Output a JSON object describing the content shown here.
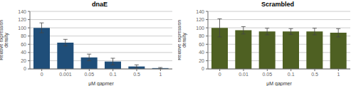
{
  "chart_data": [
    {
      "type": "bar",
      "title": "dnaE",
      "categories": [
        "0",
        "0.001",
        "0.05",
        "0.1",
        "0.5",
        "1"
      ],
      "values": [
        100,
        64,
        28,
        18,
        6,
        2
      ],
      "errors": [
        12,
        8,
        8,
        8,
        4,
        1.5
      ],
      "color": "#1F4E79",
      "xlabel": "μM gapmer",
      "ylabel": "Relative expression\ndensity",
      "ylim": [
        0,
        140
      ],
      "yticks": [
        0,
        20,
        40,
        60,
        80,
        100,
        120,
        140
      ],
      "grid": true
    },
    {
      "type": "bar",
      "title": "Scrambled",
      "categories": [
        "0",
        "0.01",
        "0.05",
        "0.1",
        "0.5",
        "1"
      ],
      "values": [
        100,
        94,
        91,
        91,
        91,
        88
      ],
      "errors": [
        22,
        9,
        8,
        7,
        8,
        10
      ],
      "color": "#4E6022",
      "xlabel": "μM gapmer",
      "ylabel": "Relative expression\ndensity",
      "ylim": [
        0,
        140
      ],
      "yticks": [
        0,
        20,
        40,
        60,
        80,
        100,
        120,
        140
      ],
      "grid": true
    }
  ]
}
